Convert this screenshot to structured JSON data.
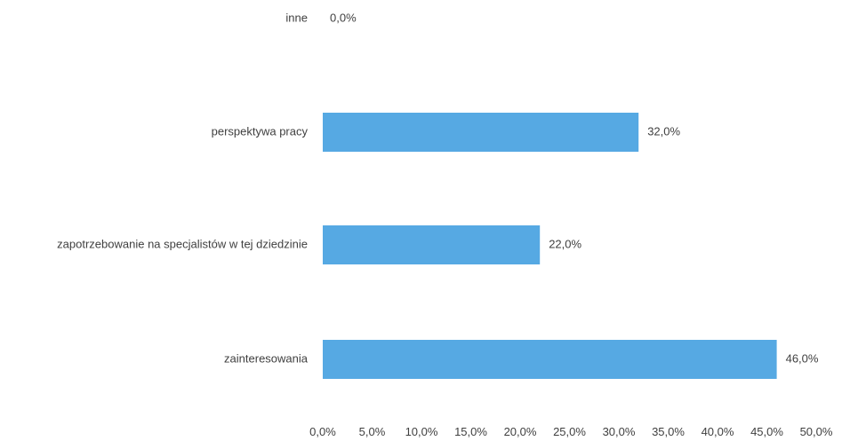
{
  "chart_data": {
    "type": "bar",
    "orientation": "horizontal",
    "categories": [
      "inne",
      "perspektywa pracy",
      "zapotrzebowanie na specjalistów w tej dziedzinie",
      "zainteresowania"
    ],
    "values": [
      0.0,
      32.0,
      22.0,
      46.0
    ],
    "data_labels": [
      "0,0%",
      "32,0%",
      "22,0%",
      "46,0%"
    ],
    "bar_color": "#56a9e3",
    "xlim": [
      0,
      50
    ],
    "xticks": [
      0,
      5,
      10,
      15,
      20,
      25,
      30,
      35,
      40,
      45,
      50
    ],
    "xtick_labels": [
      "0,0%",
      "5,0%",
      "10,0%",
      "15,0%",
      "20,0%",
      "25,0%",
      "30,0%",
      "35,0%",
      "40,0%",
      "45,0%",
      "50,0%"
    ],
    "grid": false,
    "legend": false
  }
}
